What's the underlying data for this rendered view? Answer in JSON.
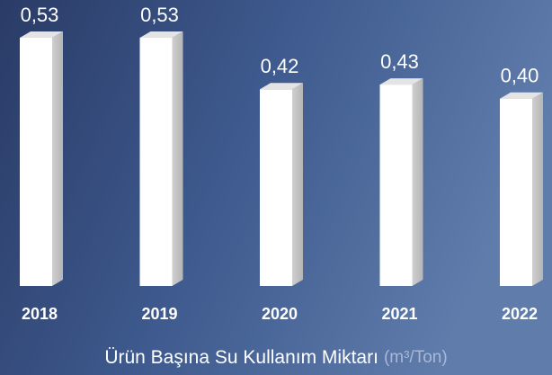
{
  "chart_data": {
    "type": "bar3d",
    "title": "Ürün Başına Su Kullanım Miktarı",
    "unit": "(m³/Ton)",
    "categories": [
      "2018",
      "2019",
      "2020",
      "2021",
      "2022"
    ],
    "values": [
      0.53,
      0.53,
      0.42,
      0.43,
      0.4
    ],
    "value_labels": [
      "0,53",
      "0,53",
      "0,42",
      "0,43",
      "0,40"
    ],
    "color": "#ffffff"
  }
}
